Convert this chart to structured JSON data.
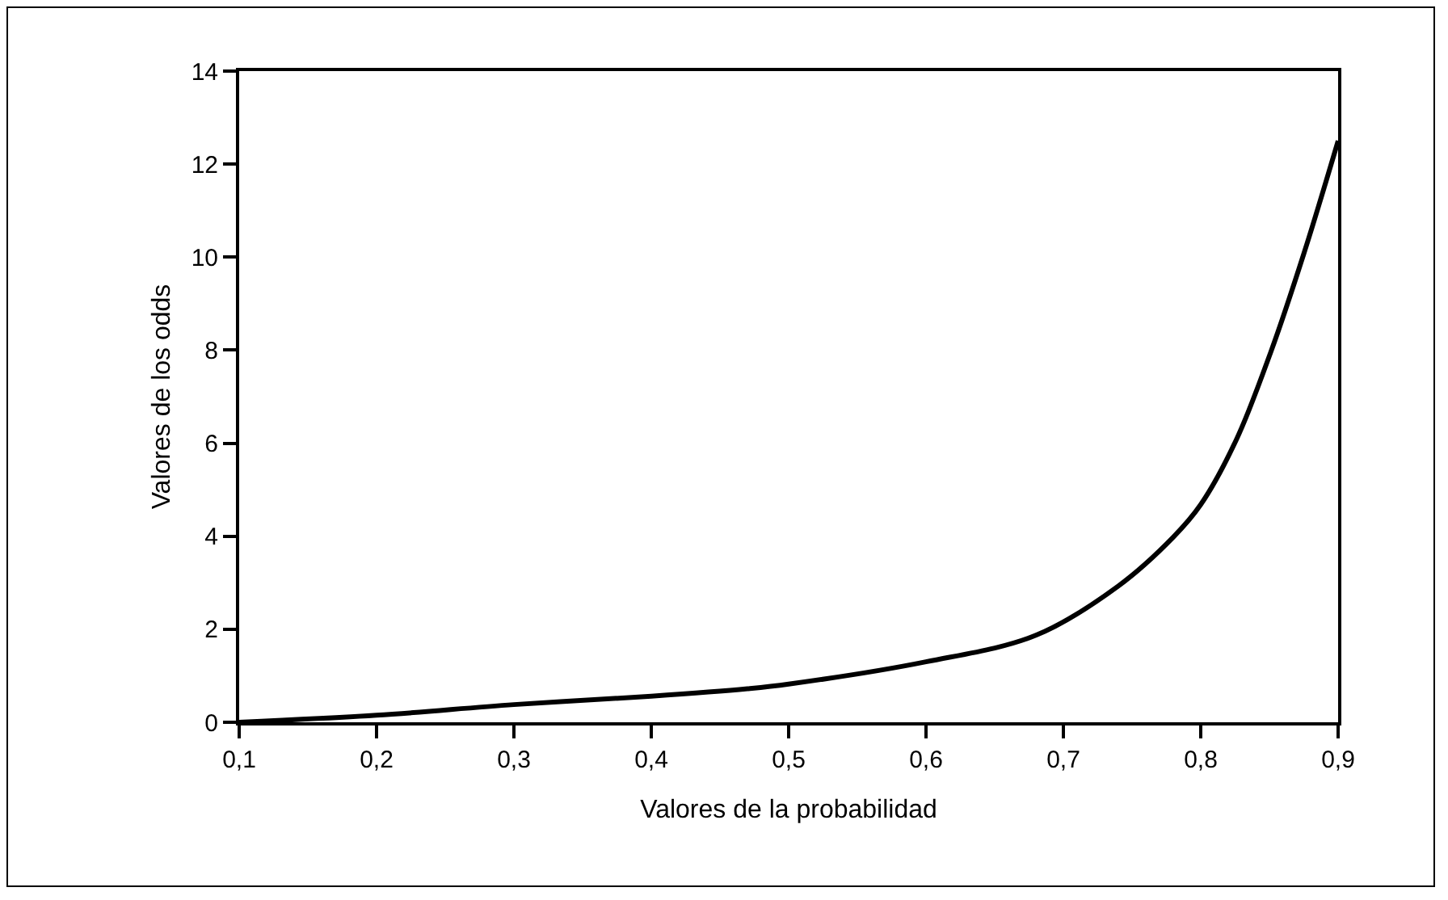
{
  "chart_data": {
    "type": "line",
    "xlabel": "Valores de la probabilidad",
    "ylabel": "Valores de los odds",
    "series": [
      {
        "color": "#000000",
        "x": [
          0.1,
          0.2,
          0.3,
          0.4,
          0.47,
          0.5,
          0.6,
          0.68,
          0.74,
          0.78,
          0.8,
          0.826,
          0.851,
          0.875,
          0.9
        ],
        "values": [
          0,
          0.15,
          0.38,
          0.56,
          0.72,
          0.82,
          1.3,
          1.87,
          2.93,
          3.98,
          4.68,
          6.08,
          7.96,
          10.07,
          12.5
        ]
      }
    ],
    "xlim": [
      0.1,
      0.9
    ],
    "xticks": [
      {
        "value": 0.1,
        "label": "0,1"
      },
      {
        "value": 0.2,
        "label": "0,2"
      },
      {
        "value": 0.3,
        "label": "0,3"
      },
      {
        "value": 0.4,
        "label": "0,4"
      },
      {
        "value": 0.5,
        "label": "0,5"
      },
      {
        "value": 0.6,
        "label": "0,6"
      },
      {
        "value": 0.7,
        "label": "0,7"
      },
      {
        "value": 0.8,
        "label": "0,8"
      },
      {
        "value": 0.9,
        "label": "0,9"
      }
    ],
    "ylim": [
      0,
      14
    ],
    "yticks": [
      0,
      2,
      4,
      6,
      8,
      10,
      12,
      14
    ],
    "grid": false,
    "marker": "none",
    "line_style": "solid"
  }
}
